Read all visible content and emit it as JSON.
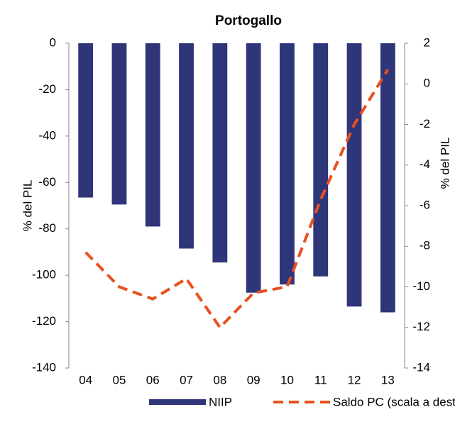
{
  "chart_data": {
    "type": "bar_line",
    "title": "Portogallo",
    "categories": [
      "04",
      "05",
      "06",
      "07",
      "08",
      "09",
      "10",
      "11",
      "12",
      "13"
    ],
    "series": [
      {
        "name": "NIIP",
        "type": "bar",
        "color": "#2e3579",
        "values": [
          -66.5,
          -69.5,
          -79,
          -88.5,
          -94.5,
          -107.5,
          -104,
          -100.5,
          -113.5,
          -116
        ]
      },
      {
        "name": "Saldo PC (scala a destra)",
        "type": "line",
        "dashed": true,
        "axis": "y2",
        "color": "#e8501e",
        "values": [
          -8.3,
          -10.0,
          -10.6,
          -9.6,
          -12.0,
          -10.3,
          -10.0,
          -5.7,
          -2.0,
          0.7
        ]
      }
    ],
    "y_label": "% del PIL",
    "y2_label": "% del PIL",
    "ylim": [
      -140,
      0
    ],
    "yticks": [
      0,
      -20,
      -40,
      -60,
      -80,
      -100,
      -120,
      -140
    ],
    "y2lim": [
      -14,
      2
    ],
    "y2ticks": [
      2,
      0,
      -2,
      -4,
      -6,
      -8,
      -10,
      -12,
      -14
    ],
    "grid": false,
    "legend": "bottom"
  }
}
